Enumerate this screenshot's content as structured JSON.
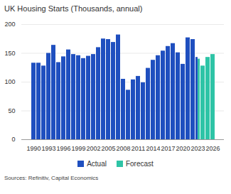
{
  "chart_data": {
    "type": "bar",
    "title": "UK Housing Starts (Thousands, annual)",
    "caption": "Sources: Refinitiv, Capital Economics",
    "categories": [
      "1990",
      null,
      null,
      "1993",
      null,
      null,
      "1996",
      null,
      null,
      "1999",
      null,
      null,
      "2002",
      null,
      null,
      "2005",
      null,
      null,
      "2008",
      null,
      null,
      "2011",
      null,
      null,
      "2014",
      null,
      null,
      "2017",
      null,
      null,
      "2020",
      null,
      null,
      "2023",
      null,
      null,
      "2026"
    ],
    "series": [
      {
        "name": "Actual",
        "color": "#1f4fbf",
        "values": [
          133,
          133,
          128,
          150,
          164,
          134,
          144,
          156,
          148,
          146,
          141,
          145,
          148,
          160,
          175,
          174,
          169,
          182,
          105,
          86,
          104,
          110,
          99,
          124,
          138,
          146,
          154,
          162,
          167,
          151,
          131,
          177,
          174,
          143,
          null,
          null,
          null
        ]
      },
      {
        "name": "Forecast",
        "color": "#2ec4a6",
        "values": [
          null,
          null,
          null,
          null,
          null,
          null,
          null,
          null,
          null,
          null,
          null,
          null,
          null,
          null,
          null,
          null,
          null,
          null,
          null,
          null,
          null,
          null,
          null,
          null,
          null,
          null,
          null,
          null,
          null,
          null,
          null,
          null,
          null,
          140,
          128,
          143,
          148
        ]
      }
    ],
    "ylim": [
      0,
      200
    ],
    "yticks": [
      0,
      50,
      100,
      150,
      200
    ],
    "grid": true,
    "legend": "bottom"
  }
}
